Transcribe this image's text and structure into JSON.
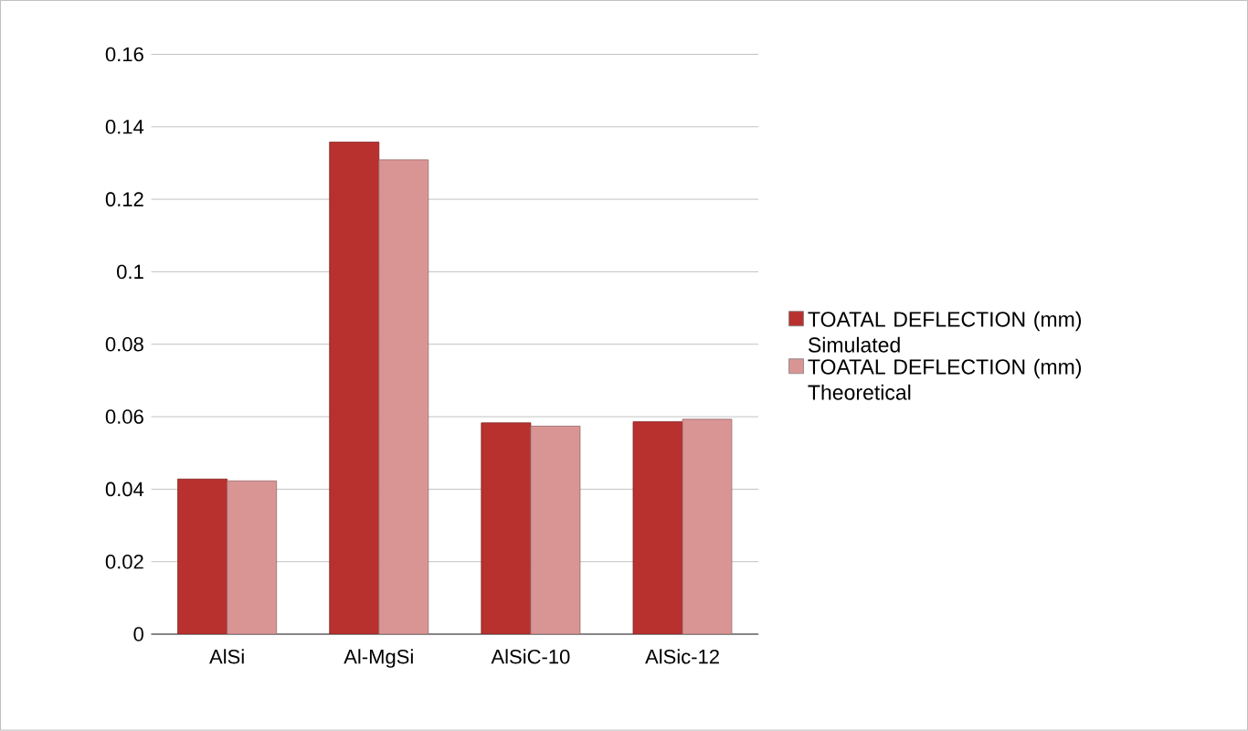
{
  "chart_data": {
    "type": "bar",
    "categories": [
      "AlSi",
      "Al-MgSi",
      "AlSiC-10",
      "AlSic-12"
    ],
    "series": [
      {
        "name": "TOATAL DEFLECTION (mm) Simulated",
        "color": "#b8312f",
        "values": [
          0.0428,
          0.1358,
          0.0583,
          0.0586
        ]
      },
      {
        "name": "TOATAL DEFLECTION (mm) Theoretical",
        "color": "#d99594",
        "values": [
          0.0423,
          0.1309,
          0.0574,
          0.0593
        ]
      }
    ],
    "ylim": [
      0,
      0.16
    ],
    "yticks": [
      0,
      0.02,
      0.04,
      0.06,
      0.08,
      0.1,
      0.12,
      0.14,
      0.16
    ],
    "grid": "y",
    "legend": "right"
  }
}
